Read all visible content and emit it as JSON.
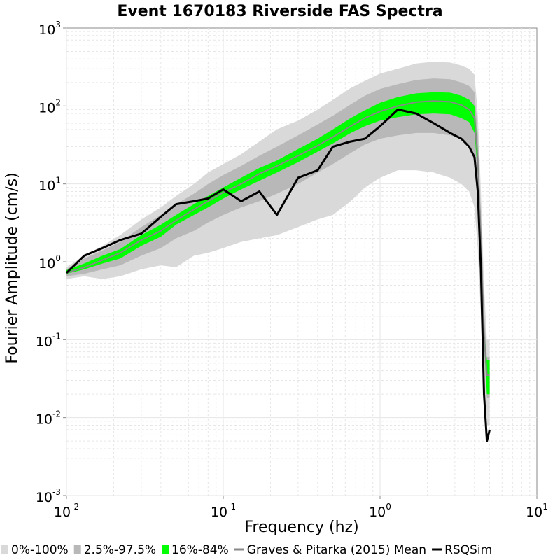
{
  "chart_data": {
    "type": "area",
    "title": "Event 1670183 Riverside FAS Spectra",
    "xlabel": "Frequency (hz)",
    "ylabel": "Fourier Amplitude (cm/s)",
    "xscale": "log",
    "yscale": "log",
    "xlim": [
      0.01,
      10
    ],
    "ylim": [
      0.001,
      1000
    ],
    "grid": true,
    "legend_position": "bottom",
    "x_ticks": [
      {
        "base": "10",
        "exp": "-2",
        "value": 0.01
      },
      {
        "base": "10",
        "exp": "-1",
        "value": 0.1
      },
      {
        "base": "10",
        "exp": "0",
        "value": 1
      },
      {
        "base": "10",
        "exp": "1",
        "value": 10
      }
    ],
    "y_ticks": [
      {
        "base": "10",
        "exp": "-3",
        "value": 0.001
      },
      {
        "base": "10",
        "exp": "-2",
        "value": 0.01
      },
      {
        "base": "10",
        "exp": "-1",
        "value": 0.1
      },
      {
        "base": "10",
        "exp": "0",
        "value": 1
      },
      {
        "base": "10",
        "exp": "1",
        "value": 10
      },
      {
        "base": "10",
        "exp": "2",
        "value": 100
      },
      {
        "base": "10",
        "exp": "3",
        "value": 1000
      }
    ],
    "x": [
      0.01,
      0.013,
      0.017,
      0.022,
      0.03,
      0.04,
      0.05,
      0.065,
      0.08,
      0.1,
      0.13,
      0.17,
      0.22,
      0.3,
      0.4,
      0.5,
      0.65,
      0.8,
      1.0,
      1.3,
      1.7,
      2.2,
      2.8,
      3.3,
      3.7,
      4.0,
      4.2,
      4.4,
      4.6,
      4.8,
      5.0
    ],
    "bands": [
      {
        "name": "0%-100%",
        "color": "#d9d9d9",
        "lower": [
          0.6,
          0.65,
          0.6,
          0.65,
          0.8,
          0.9,
          0.85,
          1.2,
          1.3,
          1.5,
          1.8,
          2.0,
          2.2,
          2.8,
          3.5,
          4.0,
          6.0,
          9.0,
          12.0,
          15.0,
          15.0,
          14.0,
          12.0,
          10.0,
          8.0,
          5.0,
          1.5,
          0.2,
          0.03,
          0.008,
          0.008
        ],
        "upper": [
          0.85,
          1.2,
          1.6,
          2.2,
          3.5,
          5.0,
          7.0,
          10.0,
          14.0,
          18.0,
          24.0,
          35.0,
          50.0,
          65.0,
          90.0,
          120.0,
          170.0,
          210.0,
          260.0,
          300.0,
          350.0,
          370.0,
          360.0,
          330.0,
          300.0,
          250.0,
          80.0,
          8.0,
          0.5,
          0.1,
          0.1
        ]
      },
      {
        "name": "2.5%-97.5%",
        "color": "#b8b8b8",
        "lower": [
          0.65,
          0.7,
          0.8,
          0.9,
          1.2,
          1.5,
          2.0,
          2.5,
          3.2,
          4.0,
          5.0,
          6.0,
          7.5,
          10.0,
          14.0,
          18.0,
          25.0,
          32.0,
          38.0,
          42.0,
          45.0,
          45.0,
          42.0,
          38.0,
          32.0,
          22.0,
          7.0,
          0.8,
          0.06,
          0.018,
          0.018
        ],
        "upper": [
          0.8,
          1.1,
          1.4,
          1.8,
          2.8,
          4.0,
          5.5,
          7.5,
          10.0,
          13.0,
          17.0,
          23.0,
          30.0,
          42.0,
          58.0,
          75.0,
          105.0,
          135.0,
          165.0,
          190.0,
          215.0,
          225.0,
          220.0,
          200.0,
          180.0,
          150.0,
          45.0,
          4.0,
          0.25,
          0.06,
          0.06
        ]
      },
      {
        "name": "16%-84%",
        "color": "#00ff00",
        "lower": [
          0.7,
          0.8,
          0.95,
          1.1,
          1.6,
          2.1,
          3.0,
          4.0,
          5.0,
          6.5,
          8.5,
          11.0,
          14.0,
          19.0,
          26.0,
          33.0,
          45.0,
          55.0,
          65.0,
          72.0,
          78.0,
          80.0,
          78.0,
          70.0,
          62.0,
          45.0,
          14.0,
          1.5,
          0.1,
          0.02,
          0.02
        ],
        "upper": [
          0.78,
          0.95,
          1.2,
          1.45,
          2.2,
          3.0,
          4.0,
          5.5,
          7.0,
          9.0,
          12.0,
          16.0,
          20.0,
          28.0,
          38.0,
          50.0,
          70.0,
          88.0,
          110.0,
          130.0,
          145.0,
          150.0,
          148.0,
          135.0,
          120.0,
          100.0,
          28.0,
          2.6,
          0.14,
          0.055,
          0.055
        ]
      }
    ],
    "series": [
      {
        "name": "Graves & Pitarka (2015) Mean",
        "color": "#888888",
        "values": [
          0.72,
          0.85,
          1.05,
          1.3,
          1.9,
          2.5,
          3.4,
          4.7,
          6.0,
          7.8,
          10.0,
          13.5,
          17.0,
          23.0,
          31.0,
          40.0,
          55.0,
          70.0,
          85.0,
          100.0,
          112.0,
          116.0,
          113.0,
          103.0,
          90.0,
          70.0,
          20.0,
          2.0,
          0.12,
          0.035,
          0.035
        ]
      },
      {
        "name": "RSQSim",
        "color": "#000000",
        "values": [
          0.72,
          1.2,
          1.5,
          1.9,
          2.3,
          3.8,
          5.5,
          6.0,
          6.5,
          8.5,
          6.0,
          8.0,
          4.0,
          12.0,
          15.0,
          30.0,
          35.0,
          38.0,
          55.0,
          90.0,
          80.0,
          60.0,
          45.0,
          38.0,
          30.0,
          22.0,
          8.0,
          0.8,
          0.02,
          0.005,
          0.007
        ]
      }
    ],
    "legend": [
      {
        "label": "0%-100%",
        "kind": "swatch",
        "color": "#d9d9d9"
      },
      {
        "label": "2.5%-97.5%",
        "kind": "swatch",
        "color": "#b8b8b8"
      },
      {
        "label": "16%-84%",
        "kind": "swatch",
        "color": "#00ff00"
      },
      {
        "label": "Graves & Pitarka (2015) Mean",
        "kind": "line",
        "color": "#888888"
      },
      {
        "label": "RSQSim",
        "kind": "line",
        "color": "#000000"
      }
    ]
  }
}
